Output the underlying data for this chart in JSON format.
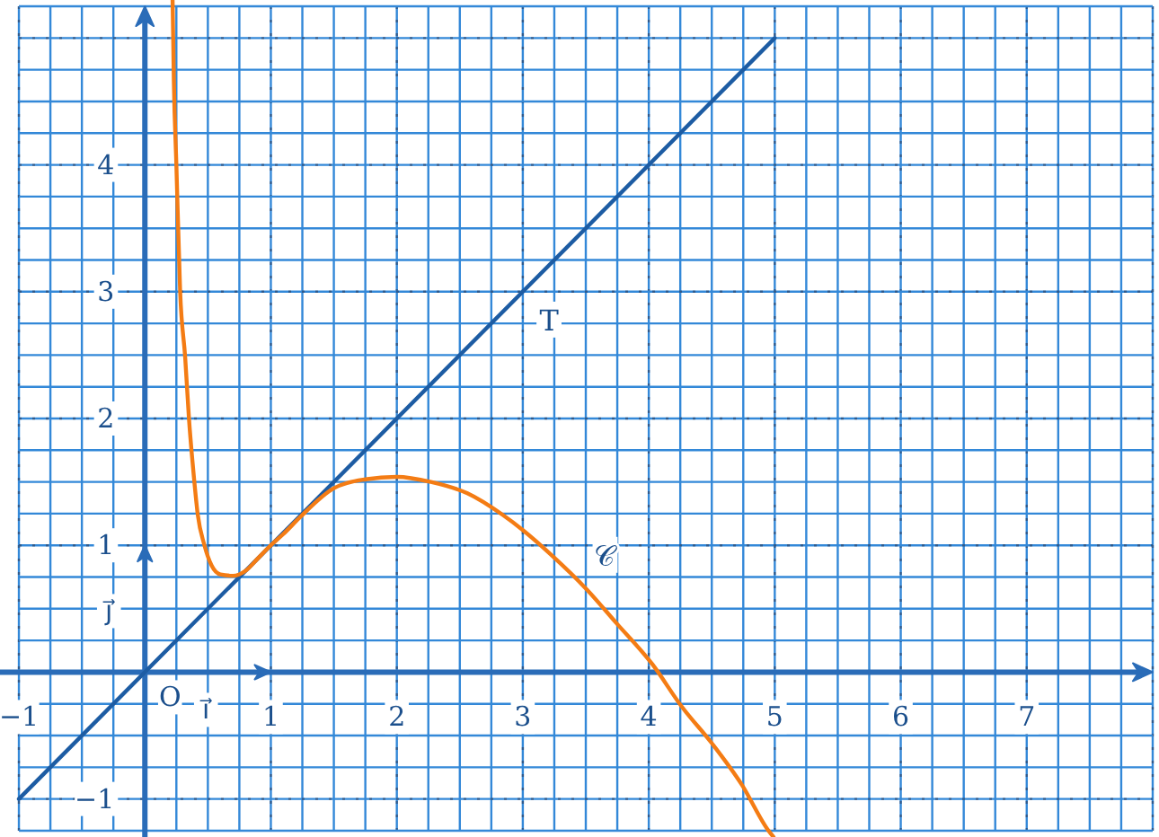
{
  "chart_data": {
    "type": "line",
    "xlim": [
      -1.15,
      8.05
    ],
    "ylim": [
      -1.3,
      5.3
    ],
    "xticks": [
      {
        "value": -1,
        "label": "−1"
      },
      {
        "value": -0.75,
        "label": null
      },
      {
        "value": -0.5,
        "label": null
      },
      {
        "value": -0.25,
        "label": null
      },
      {
        "value": 0,
        "label": null
      },
      {
        "value": 0.25,
        "label": null
      },
      {
        "value": 0.5,
        "label": null
      },
      {
        "value": 0.75,
        "label": null
      },
      1,
      {
        "value": 1.25,
        "label": null
      },
      {
        "value": 1.5,
        "label": null
      },
      {
        "value": 1.75,
        "label": null
      },
      2,
      {
        "value": 2.25,
        "label": null
      },
      {
        "value": 2.5,
        "label": null
      },
      {
        "value": 2.75,
        "label": null
      },
      3,
      {
        "value": 3.25,
        "label": null
      },
      {
        "value": 3.5,
        "label": null
      },
      {
        "value": 3.75,
        "label": null
      },
      4,
      {
        "value": 4.25,
        "label": null
      },
      {
        "value": 4.5,
        "label": null
      },
      {
        "value": 4.75,
        "label": null
      },
      5,
      {
        "value": 5.25,
        "label": null
      },
      {
        "value": 5.5,
        "label": null
      },
      {
        "value": 5.75,
        "label": null
      },
      6,
      {
        "value": 6.25,
        "label": null
      },
      {
        "value": 6.5,
        "label": null
      },
      {
        "value": 6.75,
        "label": null
      },
      7,
      {
        "value": 7.25,
        "label": null
      },
      {
        "value": 7.5,
        "label": null
      },
      {
        "value": 7.75,
        "label": null
      },
      {
        "value": 8,
        "label": null
      }
    ],
    "yticks": [
      {
        "value": -1.25,
        "label": null
      },
      {
        "value": -1,
        "label": "−1"
      },
      {
        "value": -0.75,
        "label": null
      },
      {
        "value": -0.5,
        "label": null
      },
      {
        "value": -0.25,
        "label": null
      },
      {
        "value": 0,
        "label": null
      },
      {
        "value": 0.25,
        "label": null
      },
      {
        "value": 0.5,
        "label": null
      },
      {
        "value": 0.75,
        "label": null
      },
      1,
      {
        "value": 1.25,
        "label": null
      },
      {
        "value": 1.5,
        "label": null
      },
      {
        "value": 1.75,
        "label": null
      },
      2,
      {
        "value": 2.25,
        "label": null
      },
      {
        "value": 2.5,
        "label": null
      },
      {
        "value": 2.75,
        "label": null
      },
      3,
      {
        "value": 3.25,
        "label": null
      },
      {
        "value": 3.5,
        "label": null
      },
      {
        "value": 3.75,
        "label": null
      },
      4,
      {
        "value": 4.25,
        "label": null
      },
      {
        "value": 4.5,
        "label": null
      },
      {
        "value": 4.75,
        "label": null
      },
      {
        "value": 5,
        "label": null
      },
      {
        "value": 5.25,
        "label": null
      }
    ],
    "grid": true,
    "marker": "none",
    "line_style": "solid",
    "series": [
      {
        "name": "T",
        "color": "#1d5ca3",
        "x": [
          -1,
          5
        ],
        "values": [
          -1,
          5
        ]
      },
      {
        "name": "𝒞",
        "color": "#f47c14",
        "x": [
          0.22,
          0.23,
          0.25,
          0.28,
          0.32,
          0.35,
          0.39,
          0.42,
          0.47,
          0.53,
          0.6,
          0.7,
          0.8,
          0.9,
          1,
          1.1,
          1.23,
          1.5,
          1.75,
          2,
          2.27,
          2.56,
          2.84,
          3,
          3.22,
          3.51,
          3.74,
          4.03,
          4.26,
          4.5,
          4.74,
          4.95,
          4.99
        ],
        "values": [
          5.3,
          4.66,
          4,
          3,
          2.48,
          2,
          1.53,
          1.24,
          1.01,
          0.84,
          0.77,
          0.76,
          0.8,
          0.9,
          1,
          1.09,
          1.22,
          1.45,
          1.52,
          1.54,
          1.5,
          1.41,
          1.24,
          1.12,
          0.93,
          0.65,
          0.39,
          0.06,
          -0.27,
          -0.56,
          -0.89,
          -1.25,
          -1.3
        ]
      }
    ],
    "annotations": [
      "O",
      "i⃗",
      "j⃗"
    ]
  }
}
